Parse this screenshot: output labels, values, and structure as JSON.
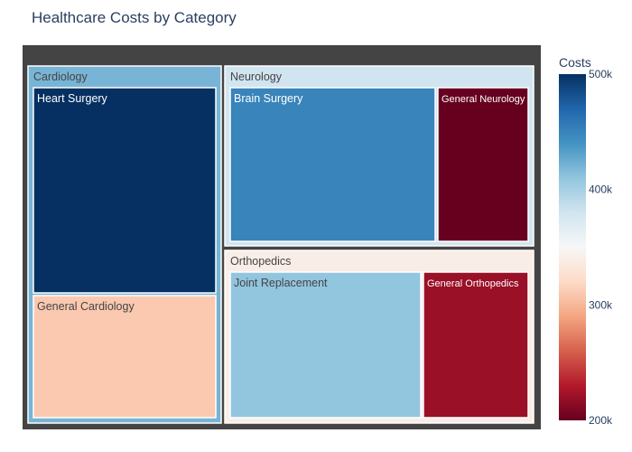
{
  "chart_data": {
    "type": "treemap",
    "title": "Healthcare Costs by Category",
    "colorbar": {
      "title": "Costs",
      "range": [
        200000,
        500000
      ],
      "ticks": [
        {
          "value": 500000,
          "label": "500k"
        },
        {
          "value": 400000,
          "label": "400k"
        },
        {
          "value": 300000,
          "label": "300k"
        },
        {
          "value": 200000,
          "label": "200k"
        }
      ],
      "colorscale": [
        "#67001f",
        "#b2182b",
        "#d6604d",
        "#f4a582",
        "#fddbc7",
        "#f7f7f7",
        "#d1e5f0",
        "#92c5de",
        "#4393c3",
        "#2166ac",
        "#053061"
      ]
    },
    "groups": [
      {
        "name": "Cardiology",
        "cost": 420000,
        "children": [
          {
            "name": "Heart Surgery",
            "cost": 500000
          },
          {
            "name": "General Cardiology",
            "cost": 310000
          }
        ]
      },
      {
        "name": "Neurology",
        "cost": 380000,
        "children": [
          {
            "name": "Brain Surgery",
            "cost": 450000
          },
          {
            "name": "General Neurology",
            "cost": 200000
          }
        ]
      },
      {
        "name": "Orthopedics",
        "cost": 340000,
        "children": [
          {
            "name": "Joint Replacement",
            "cost": 410000
          },
          {
            "name": "General Orthopedics",
            "cost": 220000
          }
        ]
      }
    ]
  }
}
